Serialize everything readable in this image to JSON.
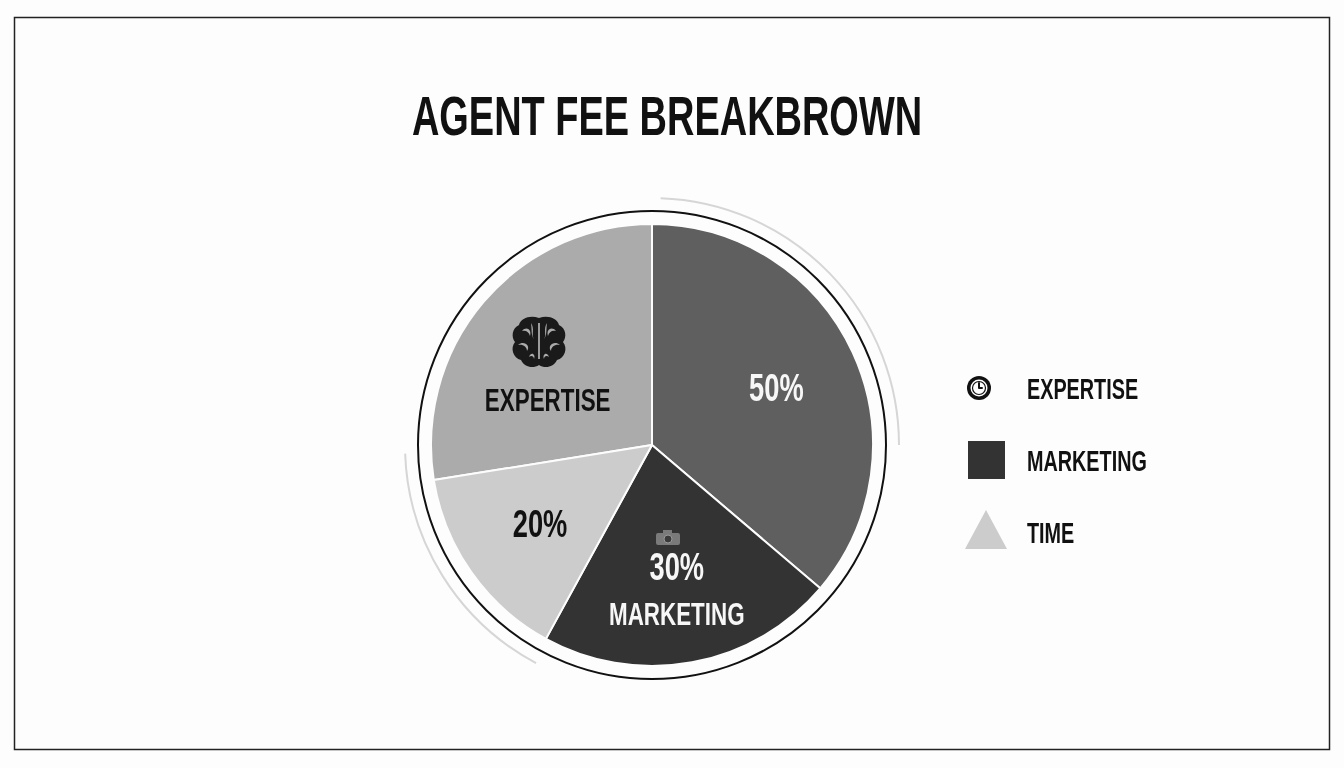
{
  "chart_data": {
    "type": "pie",
    "title": "AGENT FEE BREAKBROWN",
    "categories": [
      "EXPERTISE",
      null,
      "MARKETING",
      "TIME"
    ],
    "values": [
      38,
      50,
      30,
      20
    ],
    "colors": [
      "#ababab",
      "#5f5f5f",
      "#333333",
      "#cccccc"
    ],
    "value_labels": [
      null,
      "50%",
      "30%",
      "20%"
    ],
    "annotations": [
      {
        "text": "EXPERTISE",
        "x": "EXPERTISE"
      },
      {
        "text": "MARKETING",
        "x": "MARKETING"
      }
    ],
    "legend": "right"
  }
}
